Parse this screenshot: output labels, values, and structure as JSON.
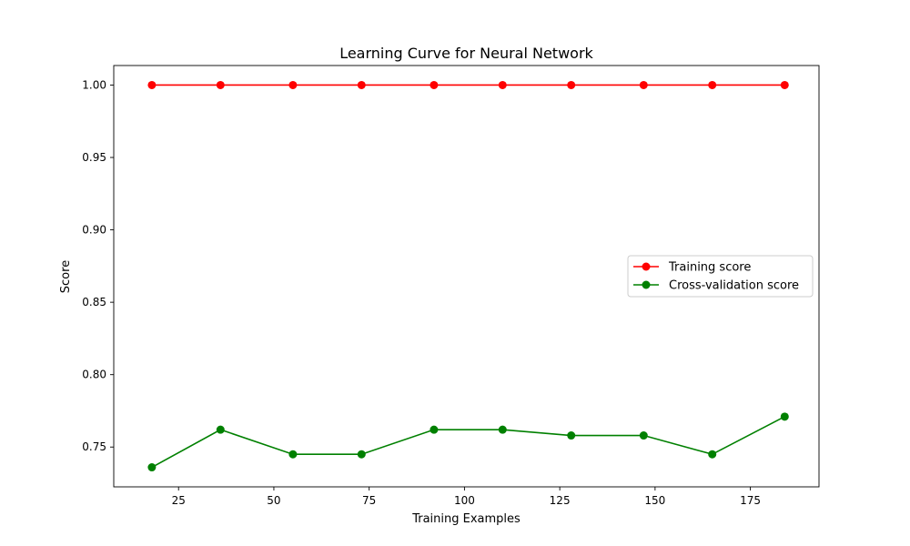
{
  "chart_data": {
    "type": "line",
    "title": "Learning Curve for Neural Network",
    "xlabel": "Training Examples",
    "ylabel": "Score",
    "xlim": [
      8,
      193
    ],
    "ylim": [
      0.7225,
      1.0135
    ],
    "xticks": [
      25,
      50,
      75,
      100,
      125,
      150,
      175
    ],
    "yticks": [
      0.75,
      0.8,
      0.85,
      0.9,
      0.95,
      1.0
    ],
    "xtick_labels": [
      "25",
      "50",
      "75",
      "100",
      "125",
      "150",
      "175"
    ],
    "ytick_labels": [
      "0.75",
      "0.80",
      "0.85",
      "0.90",
      "0.95",
      "1.00"
    ],
    "grid": false,
    "legend": {
      "position": "center-right"
    },
    "x": [
      18,
      36,
      55,
      73,
      92,
      110,
      128,
      147,
      165,
      184
    ],
    "series": [
      {
        "name": "Training score",
        "color": "#ff0000",
        "marker": "circle",
        "values": [
          1.0,
          1.0,
          1.0,
          1.0,
          1.0,
          1.0,
          1.0,
          1.0,
          1.0,
          1.0
        ]
      },
      {
        "name": "Cross-validation score",
        "color": "#008000",
        "marker": "circle",
        "values": [
          0.736,
          0.762,
          0.745,
          0.745,
          0.762,
          0.762,
          0.758,
          0.758,
          0.745,
          0.771
        ]
      }
    ]
  }
}
